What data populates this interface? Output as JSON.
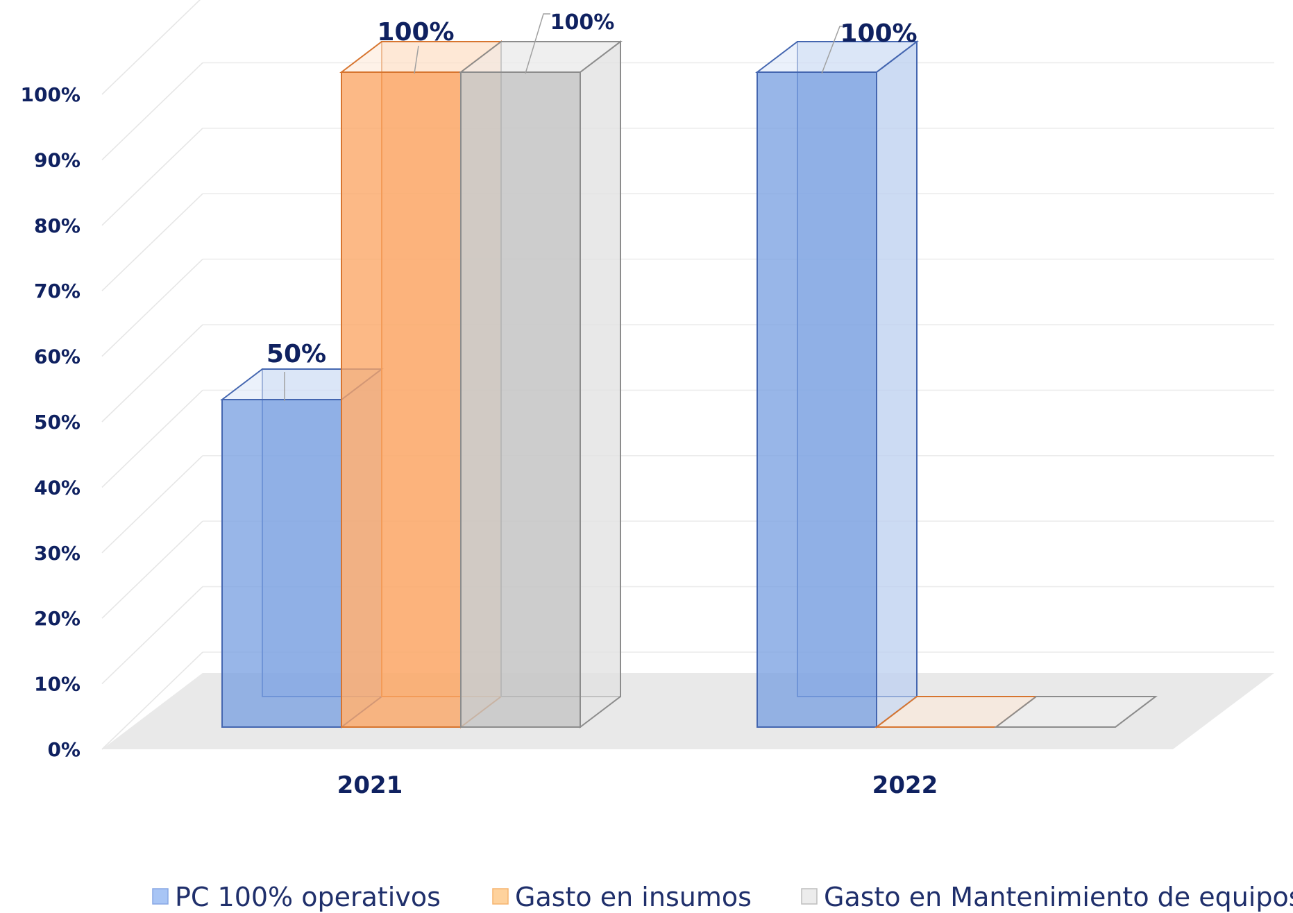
{
  "chart_data": {
    "type": "bar",
    "title": "",
    "xlabel": "",
    "ylabel": "",
    "categories": [
      "2021",
      "2022"
    ],
    "ylim": [
      0,
      100
    ],
    "yticks": [
      "0%",
      "10%",
      "20%",
      "30%",
      "40%",
      "50%",
      "60%",
      "70%",
      "80%",
      "90%",
      "100%"
    ],
    "grid": true,
    "legend_position": "bottom",
    "series": [
      {
        "name": "PC 100% operativos",
        "values": [
          50,
          100
        ],
        "labels": [
          "50%",
          "100%"
        ],
        "color": "#7ba1e2"
      },
      {
        "name": "Gasto en insumos",
        "values": [
          100,
          0
        ],
        "labels": [
          "100%",
          ""
        ],
        "color": "#fba564"
      },
      {
        "name": "Gasto en Mantenimiento de equipos",
        "values": [
          100,
          0
        ],
        "labels": [
          "100%",
          ""
        ],
        "color": "#c4c4c4"
      }
    ]
  }
}
